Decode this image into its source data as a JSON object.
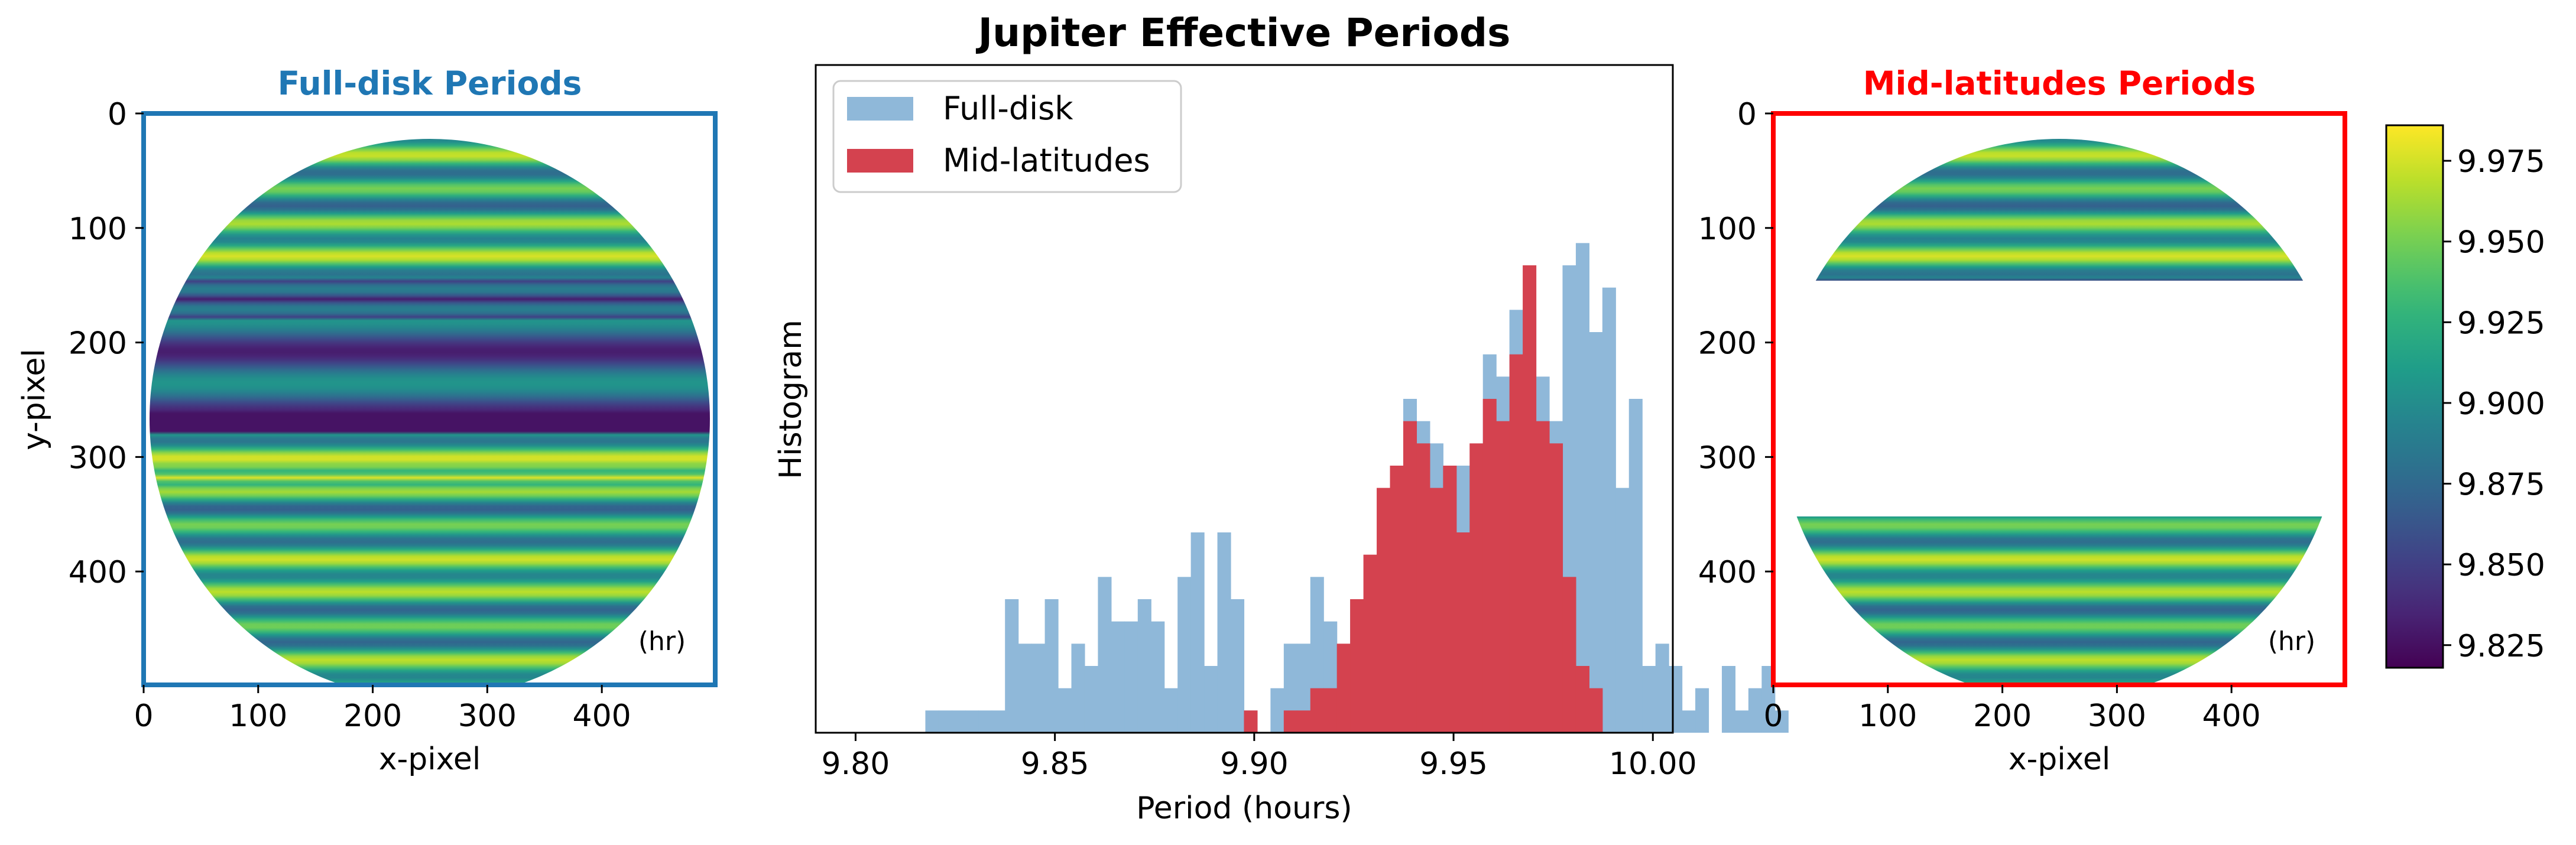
{
  "figure": {
    "title": "Jupiter Effective Periods"
  },
  "colors": {
    "full_disk": "#1f77b4",
    "mid_lat": "#ff0000",
    "hist_full": "#8fb8d9",
    "hist_mid": "#d4424f"
  },
  "chart_data": [
    {
      "id": "left-panel",
      "type": "heatmap",
      "title": "Full-disk Periods",
      "xlabel": "x-pixel",
      "ylabel": "y-pixel",
      "xlim": [
        0,
        499
      ],
      "ylim": [
        499,
        0
      ],
      "xticks": [
        "0",
        "100",
        "200",
        "300",
        "400"
      ],
      "yticks": [
        "0",
        "100",
        "200",
        "300",
        "400"
      ],
      "unit_label": "(hr)",
      "disk": {
        "cx": 249.5,
        "cy": 249.5,
        "r": 244
      },
      "masked_rows": []
    },
    {
      "id": "middle-panel",
      "type": "bar",
      "title": "Jupiter Effective Periods",
      "xlabel": "Period (hours)",
      "ylabel": "Histogram",
      "xlim": [
        9.79,
        10.005
      ],
      "xticks": [
        "9.80",
        "9.85",
        "9.90",
        "9.95",
        "10.00"
      ],
      "ylim": [
        0,
        30
      ],
      "bin_start": 9.8175,
      "bin_width": 0.00333,
      "series": [
        {
          "name": "Full-disk",
          "values": [
            1,
            1,
            1,
            1,
            1,
            1,
            6,
            4,
            4,
            6,
            2,
            4,
            3,
            7,
            5,
            5,
            6,
            5,
            2,
            7,
            9,
            3,
            9,
            6,
            1,
            0,
            2,
            4,
            4,
            7,
            5,
            3,
            6,
            5,
            4,
            4,
            15,
            14,
            13,
            11,
            12,
            10,
            17,
            16,
            19,
            19,
            16,
            14,
            21,
            22,
            18,
            20,
            11,
            15,
            3,
            4,
            3,
            1,
            2,
            0,
            3,
            1,
            2,
            3,
            1
          ]
        },
        {
          "name": "Mid-latitudes",
          "values": [
            0,
            0,
            0,
            0,
            0,
            0,
            0,
            0,
            0,
            0,
            0,
            0,
            0,
            0,
            0,
            0,
            0,
            0,
            0,
            0,
            0,
            0,
            0,
            0,
            1,
            0,
            0,
            1,
            1,
            2,
            2,
            4,
            6,
            8,
            11,
            12,
            14,
            13,
            11,
            12,
            9,
            13,
            15,
            14,
            17,
            21,
            14,
            13,
            7,
            3,
            2,
            0,
            0,
            0,
            0,
            0,
            0,
            0,
            0,
            0,
            0,
            0,
            0,
            0,
            0
          ]
        }
      ],
      "legend": "upper-left"
    },
    {
      "id": "right-panel",
      "type": "heatmap",
      "title": "Mid-latitudes Periods",
      "xlabel": "x-pixel",
      "ylabel": "",
      "xlim": [
        0,
        499
      ],
      "ylim": [
        499,
        0
      ],
      "xticks": [
        "0",
        "100",
        "200",
        "300",
        "400"
      ],
      "yticks": [
        "0",
        "100",
        "200",
        "300",
        "400"
      ],
      "unit_label": "(hr)",
      "disk": {
        "cx": 249.5,
        "cy": 249.5,
        "r": 244
      },
      "masked_rows": [
        145,
        352
      ]
    },
    {
      "id": "colorbar",
      "type": "colorbar",
      "colormap": "viridis",
      "vmin": 9.818,
      "vmax": 9.986,
      "ticks": [
        "9.825",
        "9.850",
        "9.875",
        "9.900",
        "9.925",
        "9.950",
        "9.975"
      ],
      "tick_values": [
        9.825,
        9.85,
        9.875,
        9.9,
        9.925,
        9.95,
        9.975
      ]
    }
  ]
}
